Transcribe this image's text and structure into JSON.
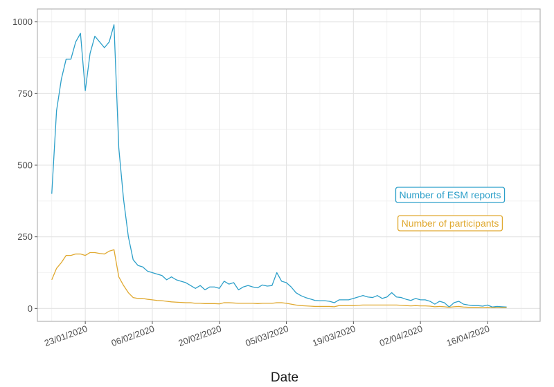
{
  "chart_data": {
    "type": "line",
    "title": "",
    "xlabel": "Date",
    "ylabel": "",
    "x_start": "2020-01-16",
    "xlim": [
      "2020-01-13",
      "2020-04-27"
    ],
    "ylim": [
      -45,
      1045
    ],
    "x_ticks": [
      {
        "date": "2020-01-23",
        "label": "23/01/2020"
      },
      {
        "date": "2020-02-06",
        "label": "06/02/2020"
      },
      {
        "date": "2020-02-20",
        "label": "20/02/2020"
      },
      {
        "date": "2020-03-05",
        "label": "05/03/2020"
      },
      {
        "date": "2020-03-19",
        "label": "19/03/2020"
      },
      {
        "date": "2020-04-02",
        "label": "02/04/2020"
      },
      {
        "date": "2020-04-16",
        "label": "16/04/2020"
      }
    ],
    "y_ticks": [
      {
        "value": 0,
        "label": "0"
      },
      {
        "value": 250,
        "label": "250"
      },
      {
        "value": 500,
        "label": "500"
      },
      {
        "value": 750,
        "label": "750"
      },
      {
        "value": 1000,
        "label": "1000"
      }
    ],
    "grid": true,
    "series": [
      {
        "name": "Number of ESM reports",
        "color": "#2C9FC9",
        "values": [
          400,
          690,
          800,
          870,
          870,
          930,
          960,
          760,
          890,
          950,
          930,
          910,
          930,
          990,
          560,
          380,
          250,
          170,
          150,
          145,
          130,
          125,
          120,
          115,
          100,
          110,
          100,
          95,
          90,
          80,
          70,
          80,
          65,
          75,
          75,
          70,
          95,
          85,
          90,
          65,
          75,
          80,
          75,
          72,
          82,
          78,
          80,
          125,
          95,
          90,
          75,
          55,
          45,
          38,
          33,
          28,
          27,
          27,
          25,
          20,
          30,
          30,
          30,
          35,
          40,
          45,
          40,
          38,
          45,
          35,
          40,
          55,
          40,
          38,
          32,
          28,
          35,
          30,
          30,
          25,
          15,
          25,
          20,
          5,
          20,
          25,
          15,
          12,
          10,
          10,
          8,
          12,
          5,
          7,
          6,
          5
        ]
      },
      {
        "name": "Number of participants",
        "color": "#E0A930",
        "values": [
          100,
          140,
          160,
          185,
          185,
          190,
          190,
          185,
          195,
          195,
          192,
          190,
          200,
          205,
          110,
          80,
          55,
          38,
          35,
          35,
          32,
          30,
          28,
          27,
          25,
          23,
          22,
          21,
          20,
          20,
          18,
          18,
          17,
          17,
          17,
          16,
          20,
          20,
          19,
          18,
          18,
          18,
          18,
          17,
          18,
          18,
          18,
          20,
          20,
          18,
          15,
          12,
          10,
          9,
          8,
          7,
          7,
          7,
          7,
          6,
          10,
          10,
          10,
          10,
          11,
          12,
          12,
          12,
          12,
          12,
          12,
          12,
          12,
          11,
          10,
          9,
          10,
          9,
          9,
          8,
          6,
          7,
          6,
          4,
          6,
          7,
          5,
          4,
          4,
          4,
          3,
          4,
          3,
          3,
          3,
          3
        ]
      }
    ],
    "legend": {
      "placement": "right",
      "entries": [
        "Number of ESM reports",
        "Number of participants"
      ]
    }
  }
}
